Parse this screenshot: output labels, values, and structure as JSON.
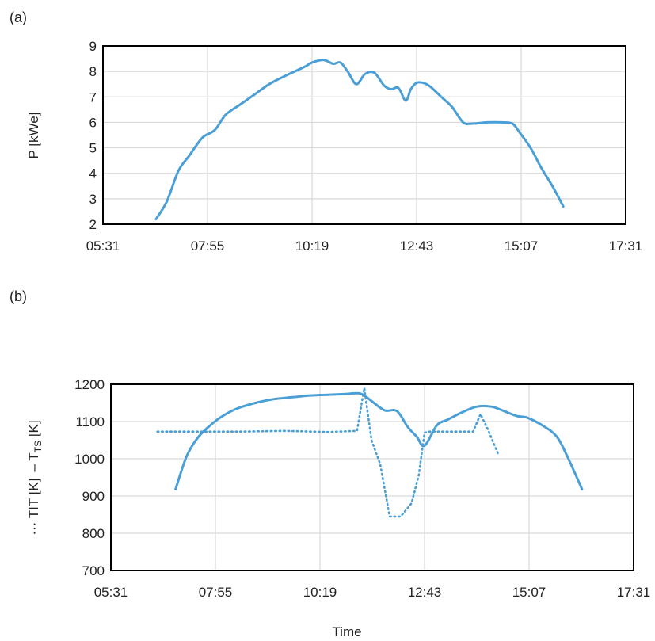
{
  "colors": {
    "series": "#4a9fd6",
    "grid": "#d9d9d9",
    "frame": "#000000"
  },
  "chart_data": [
    {
      "type": "line",
      "panel_label": "(a)",
      "xlabel": "",
      "ylabel": "P [kWe]",
      "ylim": [
        2,
        9
      ],
      "yticks": [
        "2",
        "3",
        "4",
        "5",
        "6",
        "7",
        "8",
        "9"
      ],
      "xticks": [
        "05:31",
        "07:55",
        "10:19",
        "12:43",
        "15:07",
        "17:31"
      ],
      "grid": true,
      "series": [
        {
          "style": "solid",
          "x": [
            "06:44",
            "06:59",
            "07:15",
            "07:30",
            "07:48",
            "08:05",
            "08:20",
            "08:40",
            "09:00",
            "09:20",
            "09:40",
            "09:55",
            "10:10",
            "10:19",
            "10:35",
            "10:48",
            "10:58",
            "11:08",
            "11:20",
            "11:32",
            "11:45",
            "11:58",
            "12:08",
            "12:18",
            "12:28",
            "12:35",
            "12:43",
            "12:52",
            "13:02",
            "13:17",
            "13:32",
            "13:47",
            "14:00",
            "14:20",
            "14:40",
            "14:55",
            "15:05",
            "15:20",
            "15:35",
            "15:50",
            "16:05"
          ],
          "y": [
            2.2,
            2.9,
            4.1,
            4.7,
            5.4,
            5.7,
            6.3,
            6.7,
            7.1,
            7.5,
            7.8,
            8.0,
            8.2,
            8.35,
            8.45,
            8.3,
            8.35,
            8.0,
            7.5,
            7.9,
            7.95,
            7.45,
            7.3,
            7.35,
            6.85,
            7.3,
            7.55,
            7.55,
            7.4,
            7.0,
            6.6,
            6.0,
            5.95,
            6.0,
            6.0,
            5.95,
            5.6,
            5.0,
            4.2,
            3.5,
            2.7
          ]
        }
      ]
    },
    {
      "type": "line",
      "panel_label": "(b)",
      "xlabel": "Time",
      "ylabel_parts": [
        "··· TIT [K]",
        "– T",
        "TS",
        " [K]"
      ],
      "ylim": [
        700,
        1200
      ],
      "yticks": [
        "700",
        "800",
        "900",
        "1000",
        "1100",
        "1200"
      ],
      "xticks": [
        "05:31",
        "07:55",
        "10:19",
        "12:43",
        "15:07",
        "17:31"
      ],
      "grid": true,
      "series": [
        {
          "style": "solid",
          "x": [
            "07:00",
            "07:15",
            "07:30",
            "07:48",
            "08:05",
            "08:25",
            "08:50",
            "09:15",
            "09:40",
            "10:05",
            "10:30",
            "10:55",
            "11:15",
            "11:30",
            "11:48",
            "12:05",
            "12:20",
            "12:32",
            "12:43",
            "13:00",
            "13:15",
            "13:35",
            "13:55",
            "14:15",
            "14:30",
            "14:50",
            "15:05",
            "15:25",
            "15:45",
            "16:00",
            "16:20"
          ],
          "y": [
            918,
            1005,
            1055,
            1090,
            1115,
            1135,
            1150,
            1160,
            1165,
            1170,
            1172,
            1174,
            1175,
            1155,
            1130,
            1128,
            1085,
            1060,
            1035,
            1090,
            1105,
            1125,
            1140,
            1140,
            1130,
            1115,
            1110,
            1090,
            1060,
            1005,
            918
          ]
        },
        {
          "style": "dotted",
          "x": [
            "06:35",
            "07:30",
            "08:30",
            "09:30",
            "10:30",
            "11:10",
            "11:20",
            "11:30",
            "11:42",
            "11:55",
            "12:10",
            "12:25",
            "12:35",
            "12:43",
            "12:50",
            "13:20",
            "13:50",
            "14:00",
            "14:10",
            "14:25"
          ],
          "y": [
            1073,
            1073,
            1073,
            1075,
            1072,
            1075,
            1190,
            1050,
            985,
            845,
            845,
            880,
            955,
            1070,
            1073,
            1073,
            1073,
            1120,
            1080,
            1010
          ]
        }
      ]
    }
  ]
}
